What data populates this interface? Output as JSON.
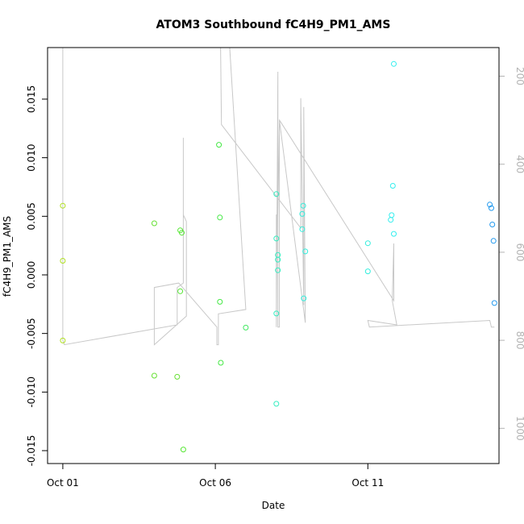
{
  "chart_data": {
    "type": "scatter",
    "title": "ATOM3 Southbound fC4H9_PM1_AMS",
    "xlabel": "Date",
    "ylabel": "fC4H9_PM1_AMS",
    "x_ticks": [
      {
        "label": "Oct 01",
        "value": 0
      },
      {
        "label": "Oct 06",
        "value": 5
      },
      {
        "label": "Oct 11",
        "value": 10
      }
    ],
    "xlim": [
      -0.5,
      14.3
    ],
    "ylim": [
      -0.0161,
      0.0194
    ],
    "y_ticks": [
      -0.015,
      -0.01,
      -0.005,
      0.0,
      0.005,
      0.01,
      0.015
    ],
    "y_tick_labels": [
      "-0.015",
      "-0.010",
      "-0.005",
      "0.000",
      "0.005",
      "0.010",
      "0.015"
    ],
    "y2_label": "",
    "y2_ticks": [
      200,
      400,
      600,
      800,
      1000
    ],
    "y2_range": [
      135,
      1080
    ],
    "y2_color": "#b3b3b3",
    "points": [
      {
        "x": 0.0,
        "y": 0.0059,
        "color": "#b0e020"
      },
      {
        "x": 0.0,
        "y": 0.0012,
        "color": "#b0e020"
      },
      {
        "x": 0.0,
        "y": -0.0056,
        "color": "#b0e020"
      },
      {
        "x": 3.0,
        "y": 0.0044,
        "color": "#66e033"
      },
      {
        "x": 3.0,
        "y": -0.0086,
        "color": "#66e033"
      },
      {
        "x": 3.75,
        "y": -0.0087,
        "color": "#66e033"
      },
      {
        "x": 3.85,
        "y": 0.0038,
        "color": "#55e633"
      },
      {
        "x": 3.9,
        "y": 0.0036,
        "color": "#55e633"
      },
      {
        "x": 3.85,
        "y": -0.0014,
        "color": "#55e633"
      },
      {
        "x": 3.95,
        "y": -0.0149,
        "color": "#55e633"
      },
      {
        "x": 5.12,
        "y": 0.0111,
        "color": "#44e844"
      },
      {
        "x": 5.15,
        "y": 0.0049,
        "color": "#44e844"
      },
      {
        "x": 5.15,
        "y": -0.0023,
        "color": "#44e844"
      },
      {
        "x": 5.18,
        "y": -0.0075,
        "color": "#44e844"
      },
      {
        "x": 6.0,
        "y": -0.0045,
        "color": "#40e860"
      },
      {
        "x": 7.0,
        "y": 0.0069,
        "color": "#33eec0"
      },
      {
        "x": 7.0,
        "y": 0.0031,
        "color": "#33eec0"
      },
      {
        "x": 7.05,
        "y": 0.0017,
        "color": "#33eec0"
      },
      {
        "x": 7.05,
        "y": 0.0013,
        "color": "#33eec0"
      },
      {
        "x": 7.05,
        "y": 0.0004,
        "color": "#33eec0"
      },
      {
        "x": 7.0,
        "y": -0.0033,
        "color": "#33eec0"
      },
      {
        "x": 7.0,
        "y": -0.011,
        "color": "#33eec0"
      },
      {
        "x": 7.85,
        "y": 0.0052,
        "color": "#33eedd"
      },
      {
        "x": 7.88,
        "y": 0.0059,
        "color": "#33eedd"
      },
      {
        "x": 7.85,
        "y": 0.0039,
        "color": "#33eedd"
      },
      {
        "x": 7.95,
        "y": 0.002,
        "color": "#33eedd"
      },
      {
        "x": 7.9,
        "y": -0.002,
        "color": "#33eedd"
      },
      {
        "x": 10.0,
        "y": 0.0027,
        "color": "#33eedd"
      },
      {
        "x": 10.0,
        "y": 0.0003,
        "color": "#33eedd"
      },
      {
        "x": 10.85,
        "y": 0.018,
        "color": "#33eeee"
      },
      {
        "x": 10.82,
        "y": 0.0076,
        "color": "#33eeee"
      },
      {
        "x": 10.78,
        "y": 0.0051,
        "color": "#33eeee"
      },
      {
        "x": 10.75,
        "y": 0.0047,
        "color": "#33eeee"
      },
      {
        "x": 10.85,
        "y": 0.0035,
        "color": "#33eeee"
      },
      {
        "x": 14.0,
        "y": 0.006,
        "color": "#2299ee"
      },
      {
        "x": 14.05,
        "y": 0.0057,
        "color": "#2299ee"
      },
      {
        "x": 14.08,
        "y": 0.0043,
        "color": "#2299ee"
      },
      {
        "x": 14.12,
        "y": 0.0029,
        "color": "#2299ee"
      },
      {
        "x": 14.15,
        "y": -0.0024,
        "color": "#2299ee"
      }
    ],
    "altitude_line": {
      "color": "#c8c8c8",
      "points": [
        {
          "x": 0.0,
          "y2": 0
        },
        {
          "x": 0.0,
          "y2": 800
        },
        {
          "x": 0.05,
          "y2": 810
        },
        {
          "x": 3.75,
          "y2": 765
        },
        {
          "x": 3.75,
          "y2": 680
        },
        {
          "x": 3.95,
          "y2": 670
        },
        {
          "x": 3.95,
          "y2": 340
        },
        {
          "x": 3.95,
          "y2": 515
        },
        {
          "x": 4.05,
          "y2": 530
        },
        {
          "x": 4.05,
          "y2": 745
        },
        {
          "x": 3.0,
          "y2": 810
        },
        {
          "x": 3.0,
          "y2": 680
        },
        {
          "x": 3.8,
          "y2": 670
        },
        {
          "x": 5.05,
          "y2": 770
        },
        {
          "x": 5.05,
          "y2": 810
        },
        {
          "x": 5.1,
          "y2": 810
        },
        {
          "x": 5.1,
          "y2": 740
        },
        {
          "x": 6.0,
          "y2": 730
        },
        {
          "x": 5.35,
          "y2": 0
        },
        {
          "x": 5.15,
          "y2": 0
        },
        {
          "x": 5.2,
          "y2": 310
        },
        {
          "x": 7.8,
          "y2": 545
        },
        {
          "x": 7.8,
          "y2": 250
        },
        {
          "x": 7.9,
          "y2": 720
        },
        {
          "x": 7.9,
          "y2": 270
        },
        {
          "x": 7.95,
          "y2": 760
        },
        {
          "x": 7.1,
          "y2": 300
        },
        {
          "x": 7.1,
          "y2": 770
        },
        {
          "x": 7.05,
          "y2": 770
        },
        {
          "x": 7.05,
          "y2": 190
        },
        {
          "x": 7.0,
          "y2": 770
        },
        {
          "x": 7.0,
          "y2": 515
        },
        {
          "x": 7.05,
          "y2": 515
        },
        {
          "x": 7.1,
          "y2": 300
        },
        {
          "x": 7.15,
          "y2": 305
        },
        {
          "x": 10.85,
          "y2": 710
        },
        {
          "x": 10.85,
          "y2": 580
        },
        {
          "x": 10.8,
          "y2": 710
        },
        {
          "x": 10.95,
          "y2": 765
        },
        {
          "x": 10.0,
          "y2": 755
        },
        {
          "x": 10.05,
          "y2": 770
        },
        {
          "x": 14.0,
          "y2": 755
        },
        {
          "x": 14.05,
          "y2": 770
        },
        {
          "x": 14.15,
          "y2": 770
        }
      ]
    }
  }
}
